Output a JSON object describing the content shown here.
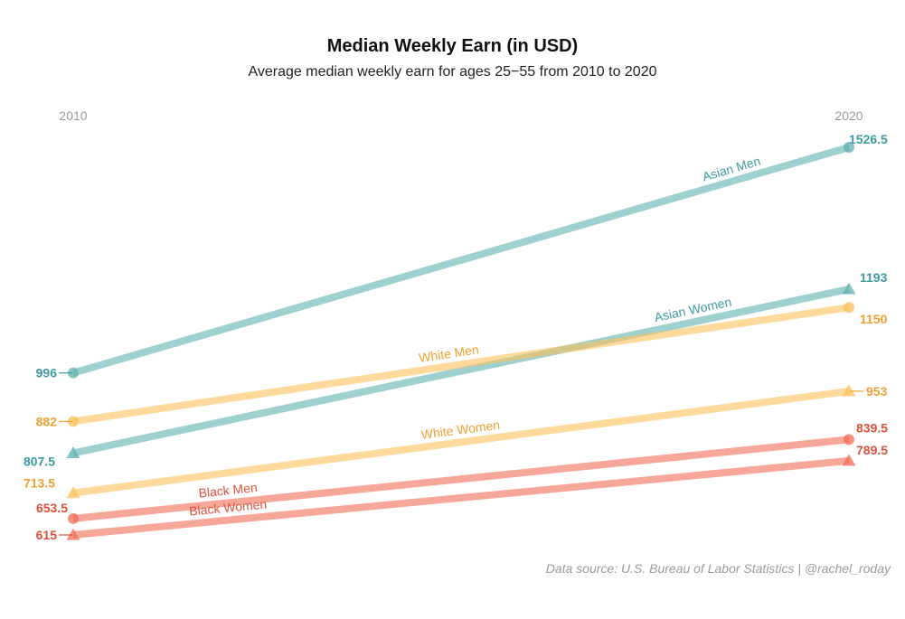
{
  "chart_data": {
    "type": "line",
    "title": "Median Weekly Earn (in USD)",
    "subtitle": "Average median weekly earn for ages 25−55 from 2010 to 2020",
    "caption": "Data source:  U.S. Bureau of Labor Statistics | @rachel_roday",
    "x": [
      "2010",
      "2020"
    ],
    "ylim": [
      615,
      1526.5
    ],
    "grid": false,
    "legend": "none (direct labels)",
    "series": [
      {
        "name": "Asian Men",
        "values": [
          996,
          1526.5
        ],
        "color": "#5fb0b0",
        "marker": "circle"
      },
      {
        "name": "Asian Women",
        "values": [
          807.5,
          1193
        ],
        "color": "#5fb0b0",
        "marker": "triangle"
      },
      {
        "name": "White Men",
        "values": [
          882,
          1150
        ],
        "color": "#fbbf59",
        "marker": "circle"
      },
      {
        "name": "White Women",
        "values": [
          713.5,
          953
        ],
        "color": "#fbbf59",
        "marker": "triangle"
      },
      {
        "name": "Black Men",
        "values": [
          653.5,
          839.5
        ],
        "color": "#f26c55",
        "marker": "circle"
      },
      {
        "name": "Black Women",
        "values": [
          615,
          789.5
        ],
        "color": "#f26c55",
        "marker": "triangle"
      }
    ],
    "value_labels": {
      "start": [
        "996",
        "807.5",
        "882",
        "713.5",
        "653.5",
        "615"
      ],
      "end": [
        "1526.5",
        "1193",
        "1150",
        "953",
        "839.5",
        "789.5"
      ]
    },
    "colors": {
      "asian_line": "#5fb0b0",
      "asian_text": "#3f9aa2",
      "white_line": "#fbbf59",
      "white_text": "#f0a030",
      "black_line": "#f26c55",
      "black_text": "#e0503a"
    }
  }
}
